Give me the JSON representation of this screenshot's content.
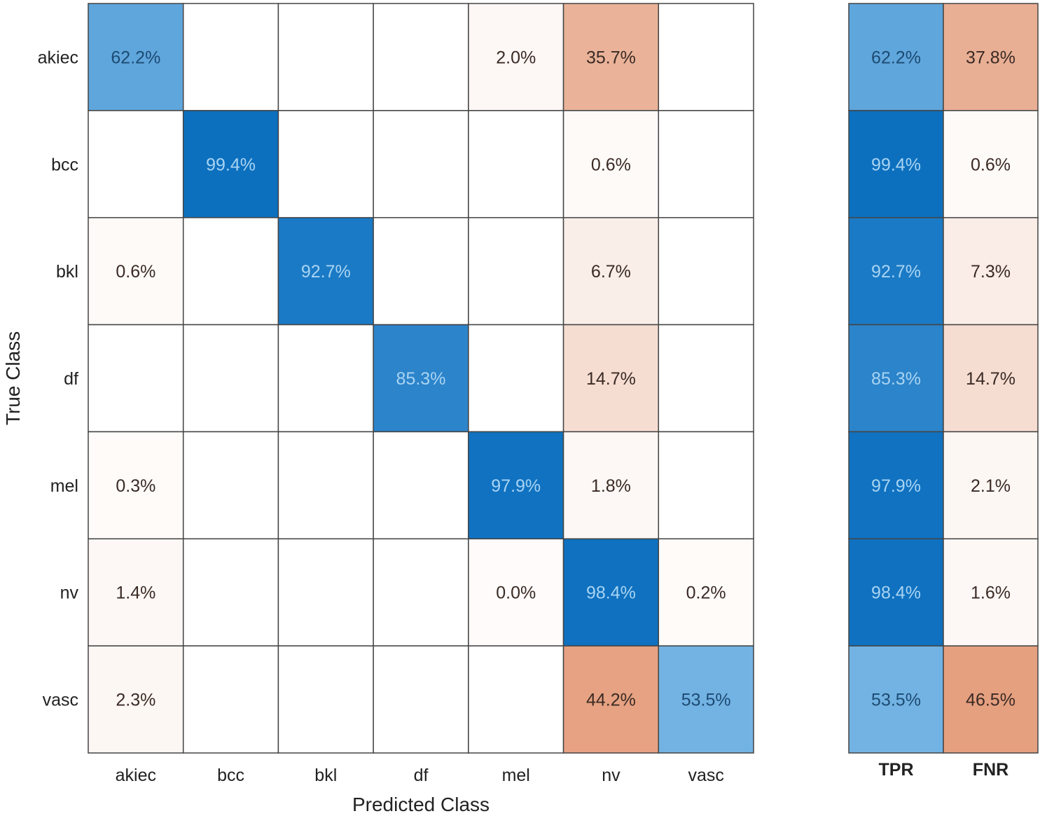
{
  "chart_data": {
    "type": "heatmap",
    "xlabel": "Predicted Class",
    "ylabel": "True Class",
    "classes": [
      "akiec",
      "bcc",
      "bkl",
      "df",
      "mel",
      "nv",
      "vasc"
    ],
    "matrix_percent": [
      [
        62.2,
        null,
        null,
        null,
        2.0,
        35.7,
        null
      ],
      [
        null,
        99.4,
        null,
        null,
        null,
        0.6,
        null
      ],
      [
        0.6,
        null,
        92.7,
        null,
        null,
        6.7,
        null
      ],
      [
        null,
        null,
        null,
        85.3,
        null,
        14.7,
        null
      ],
      [
        0.3,
        null,
        null,
        null,
        97.9,
        1.8,
        null
      ],
      [
        1.4,
        null,
        null,
        null,
        0.0,
        98.4,
        0.2
      ],
      [
        2.3,
        null,
        null,
        null,
        null,
        44.2,
        53.5
      ]
    ],
    "summary_columns": [
      "TPR",
      "FNR"
    ],
    "summary_percent": [
      [
        62.2,
        37.8
      ],
      [
        99.4,
        0.6
      ],
      [
        92.7,
        7.3
      ],
      [
        85.3,
        14.7
      ],
      [
        97.9,
        2.1
      ],
      [
        98.4,
        1.6
      ],
      [
        53.5,
        46.5
      ]
    ],
    "value_format": "%",
    "colors": {
      "correct": "#0b6fbf",
      "incorrect": "#e5a080",
      "grid": "#444444"
    }
  }
}
